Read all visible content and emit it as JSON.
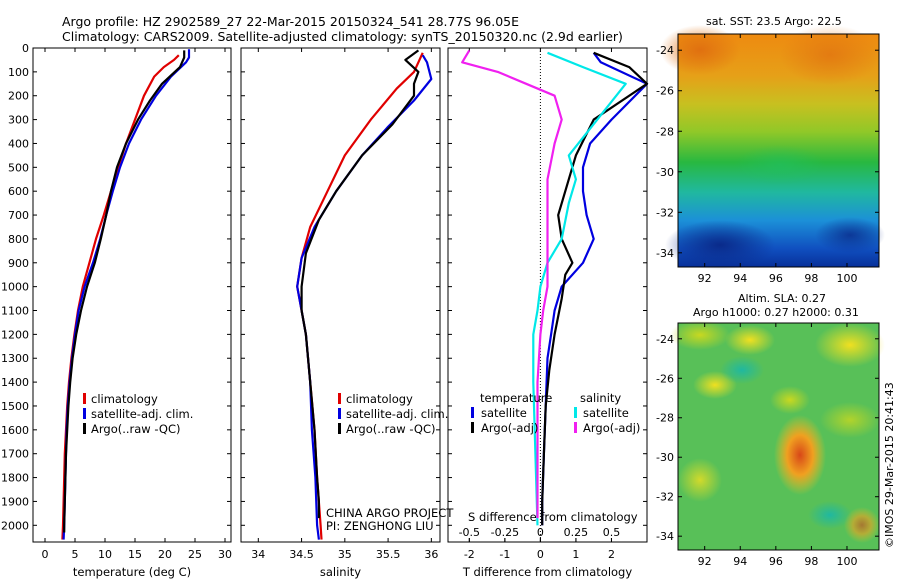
{
  "title": {
    "line1": "Argo profile: HZ 2902589_27 22-Mar-2015 20150324_541 28.77S 96.05E",
    "line2": "Climatology: CARS2009. Satellite-adjusted climatology: synTS_20150320.nc (2.9d earlier)"
  },
  "credit": {
    "project": "CHINA ARGO PROJECT",
    "pi": "PI: ZENGHONG LIU",
    "side": "©IMOS 29-Mar-2015 20:41:43"
  },
  "colors": {
    "red": "#e00000",
    "blue": "#0000e0",
    "black": "#000000",
    "cyan": "#00e8e8",
    "magenta": "#f020f0"
  },
  "chart_data": [
    {
      "type": "line",
      "id": "temperature",
      "xlabel": "temperature (deg C)",
      "ylabel": "",
      "xlim": [
        -2,
        31
      ],
      "ylim": [
        2070,
        0
      ],
      "xticks": [
        0,
        5,
        10,
        15,
        20,
        25,
        30
      ],
      "yticks": [
        0,
        100,
        200,
        300,
        400,
        500,
        600,
        700,
        800,
        900,
        1000,
        1100,
        1200,
        1300,
        1400,
        1500,
        1600,
        1700,
        1800,
        1900,
        2000
      ],
      "legend": [
        "climatology",
        "satellite-adj. clim.",
        "Argo(..raw -QC)"
      ],
      "series": [
        {
          "name": "climatology",
          "color": "red",
          "points": [
            [
              22.3,
              30
            ],
            [
              21.5,
              50
            ],
            [
              19.8,
              80
            ],
            [
              18.2,
              120
            ],
            [
              16.5,
              200
            ],
            [
              15,
              300
            ],
            [
              13.5,
              400
            ],
            [
              12.2,
              500
            ],
            [
              11,
              600
            ],
            [
              9.8,
              700
            ],
            [
              8.5,
              800
            ],
            [
              7.4,
              900
            ],
            [
              6.3,
              1000
            ],
            [
              5.5,
              1100
            ],
            [
              4.9,
              1200
            ],
            [
              4.4,
              1300
            ],
            [
              4,
              1400
            ],
            [
              3.7,
              1500
            ],
            [
              3.5,
              1600
            ],
            [
              3.3,
              1700
            ],
            [
              3.2,
              1800
            ],
            [
              3.1,
              1900
            ],
            [
              3,
              2000
            ],
            [
              2.9,
              2060
            ]
          ]
        },
        {
          "name": "satellite-adj. clim.",
          "color": "blue",
          "points": [
            [
              24,
              5
            ],
            [
              24,
              40
            ],
            [
              23.5,
              60
            ],
            [
              21,
              120
            ],
            [
              18.5,
              200
            ],
            [
              16,
              300
            ],
            [
              14,
              400
            ],
            [
              12.5,
              500
            ],
            [
              11.3,
              600
            ],
            [
              10.2,
              700
            ],
            [
              9.2,
              800
            ],
            [
              8,
              900
            ],
            [
              6.6,
              1000
            ],
            [
              5.6,
              1100
            ],
            [
              5,
              1200
            ],
            [
              4.5,
              1300
            ],
            [
              4.1,
              1400
            ],
            [
              3.8,
              1500
            ],
            [
              3.6,
              1600
            ],
            [
              3.5,
              1700
            ],
            [
              3.4,
              1800
            ],
            [
              3.3,
              1900
            ],
            [
              3.2,
              2000
            ],
            [
              3.1,
              2060
            ]
          ]
        },
        {
          "name": "Argo(..raw -QC)",
          "color": "black",
          "points": [
            [
              23.2,
              10
            ],
            [
              23.2,
              40
            ],
            [
              22.5,
              80
            ],
            [
              19.5,
              150
            ],
            [
              17.5,
              220
            ],
            [
              15.5,
              300
            ],
            [
              13.5,
              400
            ],
            [
              12,
              500
            ],
            [
              11,
              600
            ],
            [
              10.2,
              700
            ],
            [
              9.3,
              800
            ],
            [
              8.3,
              900
            ],
            [
              7,
              1000
            ],
            [
              6,
              1100
            ],
            [
              5.2,
              1200
            ],
            [
              4.6,
              1300
            ],
            [
              4.2,
              1400
            ],
            [
              3.9,
              1500
            ],
            [
              3.7,
              1600
            ],
            [
              3.5,
              1700
            ],
            [
              3.4,
              1800
            ],
            [
              3.3,
              1900
            ],
            [
              3.2,
              2000
            ],
            [
              3.2,
              2030
            ]
          ]
        }
      ]
    },
    {
      "type": "line",
      "id": "salinity",
      "xlabel": "salinity",
      "xlim": [
        33.8,
        36.1
      ],
      "ylim": [
        2070,
        0
      ],
      "xticks": [
        34,
        34.5,
        35,
        35.5,
        36
      ],
      "legend": [
        "climatology",
        "satellite-adj. clim.",
        "Argo(..raw -QC)"
      ],
      "series": [
        {
          "name": "climatology",
          "color": "red",
          "points": [
            [
              35.9,
              20
            ],
            [
              35.85,
              60
            ],
            [
              35.8,
              100
            ],
            [
              35.6,
              170
            ],
            [
              35.3,
              300
            ],
            [
              35,
              450
            ],
            [
              34.8,
              600
            ],
            [
              34.6,
              750
            ],
            [
              34.5,
              880
            ],
            [
              34.45,
              1000
            ],
            [
              34.5,
              1100
            ],
            [
              34.55,
              1200
            ],
            [
              34.6,
              1400
            ],
            [
              34.65,
              1600
            ],
            [
              34.68,
              1800
            ],
            [
              34.72,
              2000
            ],
            [
              34.73,
              2060
            ]
          ]
        },
        {
          "name": "satellite-adj. clim.",
          "color": "blue",
          "points": [
            [
              35.9,
              30
            ],
            [
              35.95,
              60
            ],
            [
              36,
              130
            ],
            [
              35.8,
              220
            ],
            [
              35.5,
              330
            ],
            [
              35.2,
              450
            ],
            [
              34.9,
              600
            ],
            [
              34.65,
              750
            ],
            [
              34.5,
              880
            ],
            [
              34.45,
              1000
            ],
            [
              34.5,
              1100
            ],
            [
              34.55,
              1200
            ],
            [
              34.6,
              1400
            ],
            [
              34.62,
              1600
            ],
            [
              34.66,
              1800
            ],
            [
              34.68,
              2000
            ],
            [
              34.7,
              2060
            ]
          ]
        },
        {
          "name": "Argo(..raw -QC)",
          "color": "black",
          "points": [
            [
              35.85,
              10
            ],
            [
              35.7,
              50
            ],
            [
              35.85,
              100
            ],
            [
              35.8,
              150
            ],
            [
              35.8,
              200
            ],
            [
              35.55,
              320
            ],
            [
              35.2,
              450
            ],
            [
              34.9,
              600
            ],
            [
              34.7,
              720
            ],
            [
              34.55,
              860
            ],
            [
              34.5,
              1000
            ],
            [
              34.5,
              1100
            ],
            [
              34.55,
              1200
            ],
            [
              34.6,
              1400
            ],
            [
              34.65,
              1600
            ],
            [
              34.68,
              1800
            ],
            [
              34.7,
              1900
            ],
            [
              34.7,
              1970
            ]
          ]
        }
      ]
    },
    {
      "type": "line",
      "id": "difference",
      "xlabel": "T difference from climatology",
      "x2label": "S difference from climatology",
      "xlim": [
        -2.6,
        3.0
      ],
      "x2lim": [
        -0.65,
        0.75
      ],
      "ylim": [
        2070,
        0
      ],
      "xticks": [
        -2,
        -1,
        0,
        1,
        2
      ],
      "x2ticks": [
        -0.5,
        -0.25,
        0,
        0.25,
        0.5
      ],
      "x2ticklabels": [
        "-0.5",
        "-0.25",
        "0",
        "0.25",
        "0.5"
      ],
      "legend": {
        "temperature_header": "temperature",
        "salinity_header": "salinity",
        "satellite": "satellite",
        "argo": "Argo(-adj)"
      },
      "series": [
        {
          "name": "temperature satellite",
          "color": "blue",
          "axis": "T",
          "points": [
            [
              1.5,
              20
            ],
            [
              1.7,
              60
            ],
            [
              3.0,
              150
            ],
            [
              2.0,
              300
            ],
            [
              1.4,
              400
            ],
            [
              1.2,
              500
            ],
            [
              1.2,
              600
            ],
            [
              1.3,
              700
            ],
            [
              1.5,
              800
            ],
            [
              1.2,
              900
            ],
            [
              0.6,
              1000
            ],
            [
              0.4,
              1100
            ],
            [
              0.3,
              1200
            ],
            [
              0.2,
              1300
            ],
            [
              0.15,
              1500
            ],
            [
              0.1,
              1700
            ],
            [
              0.05,
              1900
            ],
            [
              0.05,
              2000
            ]
          ]
        },
        {
          "name": "temperature Argo(-adj)",
          "color": "black",
          "axis": "T",
          "points": [
            [
              1.5,
              20
            ],
            [
              2.5,
              80
            ],
            [
              3.0,
              150
            ],
            [
              1.5,
              300
            ],
            [
              1.0,
              450
            ],
            [
              0.8,
              550
            ],
            [
              0.5,
              700
            ],
            [
              0.6,
              800
            ],
            [
              0.9,
              900
            ],
            [
              0.7,
              950
            ],
            [
              0.6,
              1050
            ],
            [
              0.4,
              1200
            ],
            [
              0.25,
              1350
            ],
            [
              0.15,
              1500
            ],
            [
              0.1,
              1700
            ],
            [
              0.05,
              1900
            ],
            [
              0.05,
              2000
            ]
          ]
        },
        {
          "name": "salinity satellite",
          "color": "cyan",
          "axis": "S",
          "points": [
            [
              0.05,
              20
            ],
            [
              0.3,
              80
            ],
            [
              0.6,
              150
            ],
            [
              0.4,
              300
            ],
            [
              0.2,
              450
            ],
            [
              0.25,
              550
            ],
            [
              0.2,
              650
            ],
            [
              0.15,
              800
            ],
            [
              0.05,
              900
            ],
            [
              0.0,
              1000
            ],
            [
              -0.02,
              1100
            ],
            [
              -0.05,
              1200
            ],
            [
              -0.05,
              1400
            ],
            [
              -0.04,
              1600
            ],
            [
              -0.03,
              1800
            ],
            [
              -0.02,
              2000
            ]
          ]
        },
        {
          "name": "salinity Argo(-adj)",
          "color": "magenta",
          "axis": "S",
          "points": [
            [
              -0.5,
              10
            ],
            [
              -0.55,
              60
            ],
            [
              -0.3,
              100
            ],
            [
              -0.1,
              150
            ],
            [
              0.1,
              200
            ],
            [
              0.15,
              300
            ],
            [
              0.1,
              400
            ],
            [
              0.05,
              550
            ],
            [
              0.05,
              700
            ],
            [
              0.05,
              800
            ],
            [
              0.05,
              900
            ],
            [
              0.05,
              1000
            ],
            [
              0.02,
              1100
            ],
            [
              0.0,
              1200
            ],
            [
              -0.02,
              1400
            ],
            [
              -0.02,
              1600
            ],
            [
              -0.02,
              1800
            ],
            [
              -0.02,
              1970
            ]
          ]
        }
      ]
    },
    {
      "type": "heatmap",
      "id": "sst-map",
      "title": "sat. SST: 23.5 Argo: 22.5",
      "xticks": [
        92,
        94,
        96,
        98,
        100
      ],
      "yticks": [
        -24,
        -26,
        -28,
        -30,
        -32,
        -34
      ],
      "xlim": [
        90.5,
        101.8
      ],
      "ylim": [
        -34.7,
        -23.2
      ]
    },
    {
      "type": "heatmap",
      "id": "sla-map",
      "title1": "Altim. SLA: 0.27",
      "title2": "Argo h1000: 0.27 h2000: 0.31",
      "xticks": [
        92,
        94,
        96,
        98,
        100
      ],
      "yticks": [
        -24,
        -26,
        -28,
        -30,
        -32,
        -34
      ],
      "xlim": [
        90.5,
        101.8
      ],
      "ylim": [
        -34.7,
        -23.2
      ]
    }
  ]
}
